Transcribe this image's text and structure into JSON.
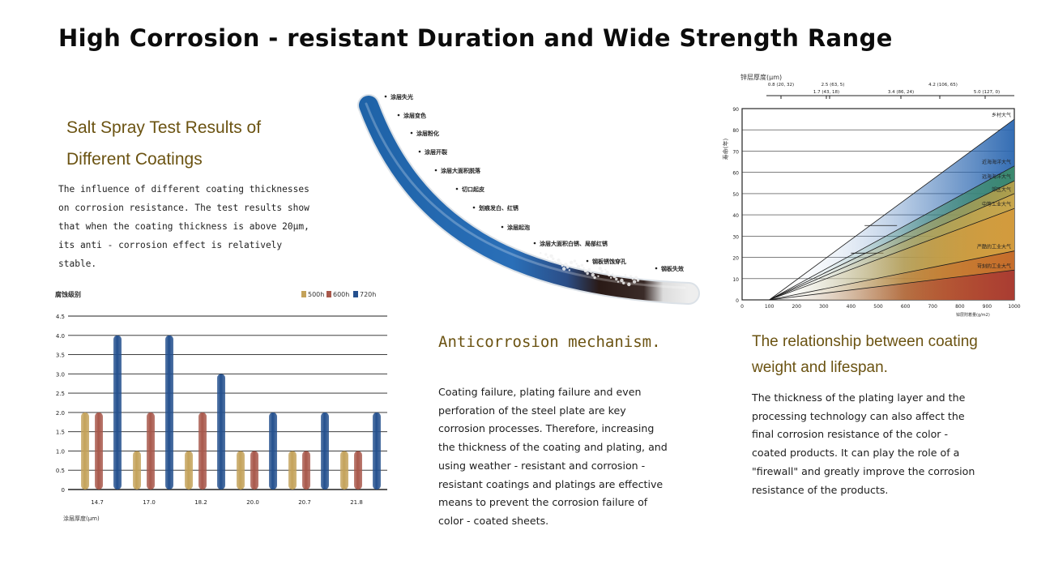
{
  "page": {
    "title": "High Corrosion - resistant Duration and Wide Strength Range"
  },
  "salt_spray": {
    "heading": "Salt Spray Test Results of Different Coatings",
    "description": "The influence of different coating thicknesses on corrosion resistance. The test results show that when the coating thickness is above 20μm, its anti - corrosion effect is relatively stable."
  },
  "anticorrosion": {
    "heading": "Anticorrosion mechanism.",
    "description": "Coating failure, plating failure and even perforation of the steel plate are key corrosion processes. Therefore, increasing the thickness of the coating and plating, and using weather - resistant and corrosion - resistant coatings and platings are effective means to prevent the corrosion failure of color - coated sheets.",
    "stages": [
      "涂层失光",
      "涂层变色",
      "涂层粉化",
      "涂层开裂",
      "涂层大面积脱落",
      "切口起皮",
      "划痕发白、红锈",
      "涂层起泡",
      "涂层大面积白锈、局部红锈",
      "钢板锈蚀穿孔",
      "钢板失效"
    ],
    "colors": {
      "bar_blue": "#1f63a8",
      "bar_dark": "#2a1a16",
      "bar_end": "#dcdcdc"
    }
  },
  "relationship": {
    "heading": "The relationship between coating weight and lifespan.",
    "description": "The thickness of the plating layer and the processing technology can also affect the final corrosion resistance of the color - coated products. It can play the role of a \"firewall\" and greatly improve the corrosion resistance of the products."
  },
  "chart_data": [
    {
      "type": "bar",
      "title": "",
      "ylabel": "腐蚀级别",
      "xlabel": "涂层厚度(μm)",
      "categories": [
        "14.7",
        "17.0",
        "18.2",
        "20.0",
        "20.7",
        "21.8"
      ],
      "ylim": [
        0,
        4.5
      ],
      "yticks": [
        0,
        0.5,
        1.0,
        1.5,
        2.0,
        2.5,
        3.0,
        3.5,
        4.0,
        4.5
      ],
      "ytick_labels": [
        "0",
        "0.5",
        "1.0",
        "1.5",
        "2.0",
        "2.5",
        "3.0",
        "3.5",
        "4.0",
        "4.5"
      ],
      "grid": true,
      "legend": "top-right",
      "series": [
        {
          "name": "500h",
          "values": [
            2.0,
            1.0,
            1.0,
            1.0,
            1.0,
            1.0
          ],
          "color": "#c4a25a"
        },
        {
          "name": "600h",
          "values": [
            2.0,
            2.0,
            2.0,
            1.0,
            1.0,
            1.0
          ],
          "color": "#a8584b"
        },
        {
          "name": "720h",
          "values": [
            4.0,
            4.0,
            3.0,
            2.0,
            2.0,
            2.0
          ],
          "color": "#24508e"
        }
      ]
    },
    {
      "type": "area",
      "title": "",
      "top_axis_title": "锌层厚度(μm)",
      "top_axis_labels": [
        "0.8 (20, 32)",
        "1.7 (43, 18)",
        "2.5 (63, 5)",
        "3.4 (86, 24)",
        "4.2 (106, 65)",
        "5.0 (127, 0)"
      ],
      "ylabel": "寿命(年)",
      "xlabel": "锌层附着量(g/m2)",
      "xticks": [
        0,
        100,
        200,
        300,
        400,
        500,
        600,
        700,
        800,
        900,
        1000
      ],
      "x_range": [
        0,
        1000
      ],
      "yticks": [
        0,
        10,
        20,
        30,
        40,
        50,
        60,
        70,
        80,
        90
      ],
      "ylim": [
        0,
        90
      ],
      "series": [
        {
          "name": "乡村大气",
          "x": [
            100,
            1000
          ],
          "y": [
            0,
            85
          ],
          "fill_from": [
            450,
            35
          ],
          "color": "#2a66b0"
        },
        {
          "name": "近海海洋大气",
          "x": [
            100,
            1000
          ],
          "y": [
            0,
            63
          ],
          "fill_from": [
            400,
            22
          ],
          "color": "#3b8a6a"
        },
        {
          "name": "远海海洋大气",
          "x": [
            100,
            1000
          ],
          "y": [
            0,
            56
          ],
          "color": "#b7a04a"
        },
        {
          "name": "郊区大气",
          "x": [
            100,
            1000
          ],
          "y": [
            0,
            50
          ],
          "color": "#c9a64c"
        },
        {
          "name": "中等工业大气",
          "x": [
            100,
            1000
          ],
          "y": [
            0,
            43
          ],
          "color": "#d39a3c"
        },
        {
          "name": "严酷的工业大气",
          "x": [
            100,
            1000
          ],
          "y": [
            0,
            23
          ],
          "color": "#c46a2a"
        },
        {
          "name": "苛刻的工业大气",
          "x": [
            100,
            1000
          ],
          "y": [
            0,
            14
          ],
          "color": "#a83a33"
        }
      ]
    }
  ]
}
